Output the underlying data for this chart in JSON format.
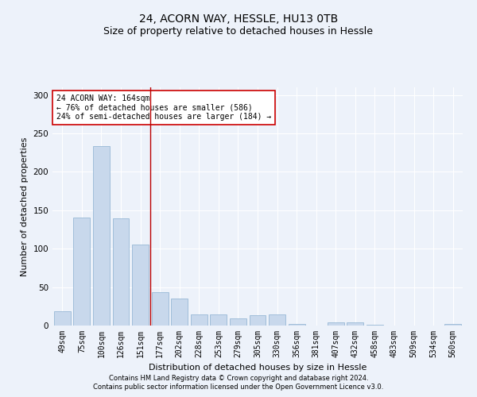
{
  "title": "24, ACORN WAY, HESSLE, HU13 0TB",
  "subtitle": "Size of property relative to detached houses in Hessle",
  "xlabel": "Distribution of detached houses by size in Hessle",
  "ylabel": "Number of detached properties",
  "bar_color": "#c8d8ec",
  "bar_edge_color": "#8ab0d0",
  "vline_color": "#bb0000",
  "vline_x": 4.5,
  "categories": [
    "49sqm",
    "75sqm",
    "100sqm",
    "126sqm",
    "151sqm",
    "177sqm",
    "202sqm",
    "228sqm",
    "253sqm",
    "279sqm",
    "305sqm",
    "330sqm",
    "356sqm",
    "381sqm",
    "407sqm",
    "432sqm",
    "458sqm",
    "483sqm",
    "509sqm",
    "534sqm",
    "560sqm"
  ],
  "values": [
    19,
    141,
    234,
    140,
    105,
    43,
    35,
    14,
    14,
    9,
    13,
    14,
    2,
    0,
    4,
    4,
    1,
    0,
    0,
    0,
    2
  ],
  "ylim": [
    0,
    310
  ],
  "yticks": [
    0,
    50,
    100,
    150,
    200,
    250,
    300
  ],
  "annotation_text": "24 ACORN WAY: 164sqm\n← 76% of detached houses are smaller (586)\n24% of semi-detached houses are larger (184) →",
  "annotation_box_color": "#ffffff",
  "annotation_box_edge": "#cc0000",
  "footer_line1": "Contains HM Land Registry data © Crown copyright and database right 2024.",
  "footer_line2": "Contains public sector information licensed under the Open Government Licence v3.0.",
  "background_color": "#edf2fa",
  "plot_bg_color": "#edf2fa",
  "grid_color": "#ffffff",
  "title_fontsize": 10,
  "subtitle_fontsize": 9,
  "ylabel_fontsize": 8,
  "xlabel_fontsize": 8,
  "tick_fontsize": 7,
  "annotation_fontsize": 7,
  "footer_fontsize": 6
}
